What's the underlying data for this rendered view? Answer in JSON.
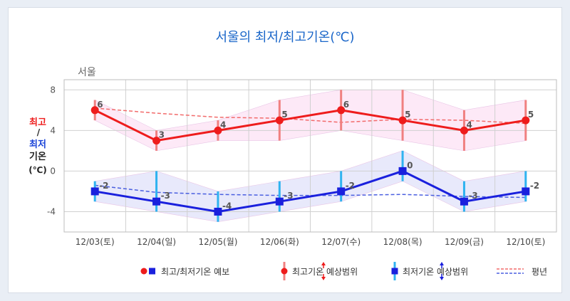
{
  "title": "서울의 최저/최고기온(℃)",
  "chart_data": {
    "type": "line",
    "region_label": "서울",
    "categories": [
      "12/03(토)",
      "12/04(일)",
      "12/05(월)",
      "12/06(화)",
      "12/07(수)",
      "12/08(목)",
      "12/09(금)",
      "12/10(토)"
    ],
    "ylim": [
      -6,
      9
    ],
    "yticks": [
      8,
      4,
      0,
      -4
    ],
    "ylabel_parts": {
      "top": "최고",
      "slash": "/",
      "mid": "최저",
      "bottom": "기온",
      "unit": "(℃)"
    },
    "series": [
      {
        "name": "최고기온",
        "values": [
          6,
          3,
          4,
          5,
          6,
          5,
          4,
          5
        ],
        "labels": [
          "6",
          "3",
          "4",
          "5",
          "6",
          "5",
          "4",
          "5"
        ],
        "range_low": [
          5,
          2,
          3,
          3,
          4,
          3,
          2,
          3
        ],
        "range_high": [
          7,
          4,
          5,
          7,
          8,
          8,
          6,
          7
        ],
        "color": "#ee1c1c"
      },
      {
        "name": "최저기온",
        "values": [
          -2,
          -3,
          -4,
          -3,
          -2,
          0,
          -3,
          -2
        ],
        "labels": [
          "-2",
          "-3",
          "-4",
          "-3",
          "-2",
          "0",
          "-3",
          "-2"
        ],
        "range_low": [
          -3,
          -4,
          -5,
          -4,
          -3,
          -1,
          -4,
          -3
        ],
        "range_high": [
          -1,
          0,
          -2,
          -1,
          0,
          2,
          -1,
          0
        ],
        "color": "#1a20dd"
      }
    ],
    "normal": {
      "high": [
        6.2,
        5.7,
        5.3,
        5.2,
        4.8,
        5.1,
        5.0,
        4.7
      ],
      "low": [
        -1.4,
        -2.1,
        -2.3,
        -2.4,
        -2.4,
        -2.3,
        -2.5,
        -2.6
      ]
    },
    "legend": [
      {
        "key": "forecast",
        "label": "최고/최저기온 예보"
      },
      {
        "key": "high_range",
        "label": "최고기온 예상범위"
      },
      {
        "key": "low_range",
        "label": "최저기온 예상범위"
      },
      {
        "key": "normal",
        "label": "평년"
      }
    ],
    "colors": {
      "high": "#ee1c1c",
      "low": "#1a20dd",
      "high_range_bar": "#f08080",
      "low_range_bar": "#2fb3f0",
      "high_band": "#fde9f7",
      "low_band": "#e8e9fb",
      "grid": "#d0d0d0"
    }
  }
}
